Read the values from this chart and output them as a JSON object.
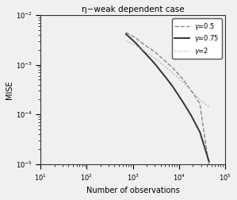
{
  "title": "η−weak dependent case",
  "xlabel": "Number of observations",
  "ylabel": "MISE",
  "xlim": [
    10,
    100000
  ],
  "ylim": [
    1e-05,
    0.01
  ],
  "series": [
    {
      "label": "γ=0.5",
      "linestyle": "--",
      "color": "#888888",
      "linewidth": 1.0,
      "x_log": [
        2.85,
        3.05,
        3.25,
        3.45,
        3.65,
        3.85,
        4.05,
        4.25,
        4.45,
        4.65
      ],
      "y_log": [
        -2.35,
        -2.45,
        -2.6,
        -2.72,
        -2.88,
        -3.05,
        -3.25,
        -3.5,
        -3.78,
        -5.05
      ]
    },
    {
      "label": "γ=0.75",
      "linestyle": "-",
      "color": "#333333",
      "linewidth": 1.4,
      "x_log": [
        2.85,
        3.05,
        3.25,
        3.45,
        3.65,
        3.85,
        4.05,
        4.25,
        4.45,
        4.65
      ],
      "y_log": [
        -2.38,
        -2.55,
        -2.75,
        -2.95,
        -3.18,
        -3.42,
        -3.7,
        -4.0,
        -4.35,
        -4.95
      ]
    },
    {
      "label": "γ=2",
      "linestyle": ":",
      "color": "#aaaaaa",
      "linewidth": 1.0,
      "x_log": [
        2.85,
        3.05,
        3.25,
        3.45,
        3.65,
        3.85,
        4.05,
        4.25,
        4.45,
        4.65
      ],
      "y_log": [
        -2.52,
        -2.6,
        -2.72,
        -2.85,
        -3.0,
        -3.15,
        -3.32,
        -3.5,
        -3.7,
        -3.85
      ]
    }
  ],
  "background_color": "#f0f0f0"
}
